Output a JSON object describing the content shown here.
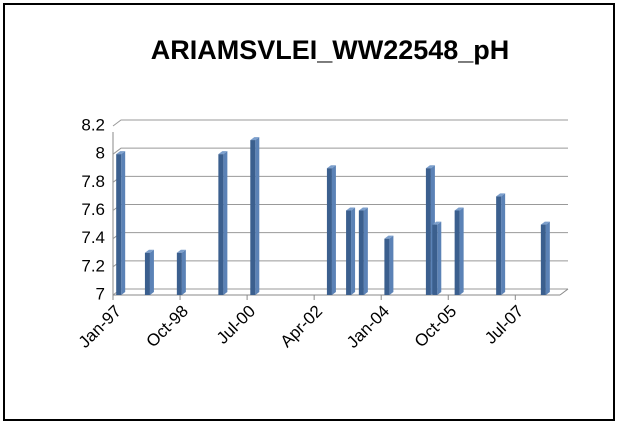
{
  "chart_data": {
    "type": "bar",
    "title": "ARIAMSVLEI_WW22548_pH",
    "x": [
      1,
      10,
      20,
      33,
      43,
      67,
      73,
      77,
      85,
      98,
      100,
      107,
      120,
      134
    ],
    "values": [
      8.0,
      7.3,
      7.3,
      8.0,
      8.1,
      7.9,
      7.6,
      7.6,
      7.4,
      7.9,
      7.5,
      7.6,
      7.7,
      7.5
    ],
    "color": "#3b5f8e",
    "xlim": [
      0,
      140
    ],
    "xticks": [
      {
        "value": 0,
        "label": "Jan-97"
      },
      {
        "value": 21,
        "label": "Oct-98"
      },
      {
        "value": 42,
        "label": "Jul-00"
      },
      {
        "value": 63,
        "label": "Apr-02"
      },
      {
        "value": 84,
        "label": "Jan-04"
      },
      {
        "value": 105,
        "label": "Oct-05"
      },
      {
        "value": 126,
        "label": "Jul-07"
      }
    ],
    "ylim": [
      7,
      8.2
    ],
    "yticks": [
      7,
      7.2,
      7.4,
      7.6,
      7.8,
      8,
      8.2
    ],
    "grid": true
  }
}
